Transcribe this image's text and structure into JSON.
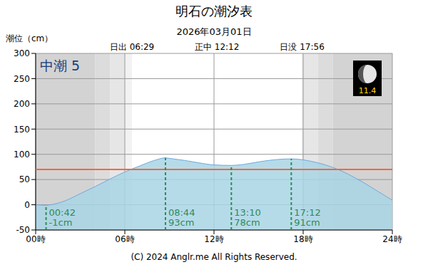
{
  "chart_data": {
    "type": "area",
    "title": "明石の潮汐表",
    "subtitle": "2026年03月01日",
    "y_label": "潮位（cm）",
    "tide_name": "中潮 5",
    "moon_age": 11.4,
    "x": [
      0,
      0.7,
      1,
      2,
      3,
      4,
      5,
      6,
      7,
      8,
      8.73,
      9,
      10,
      11,
      12,
      13.17,
      14,
      15,
      16,
      17.2,
      18,
      19,
      20,
      21,
      22,
      23,
      24
    ],
    "values": [
      0,
      -1,
      0,
      8,
      22,
      36,
      51,
      65,
      77,
      88,
      93,
      92,
      88,
      83,
      79,
      78,
      80,
      85,
      89,
      91,
      89,
      83,
      74,
      61,
      45,
      27,
      9
    ],
    "color": "#a8d5e5",
    "xlim": [
      0,
      24
    ],
    "xticks": [
      {
        "value": 0,
        "label": "00時"
      },
      {
        "value": 6,
        "label": "06時"
      },
      {
        "value": 12,
        "label": "12時"
      },
      {
        "value": 18,
        "label": "18時"
      },
      {
        "value": 24,
        "label": "24時"
      }
    ],
    "ylim": [
      -50,
      300
    ],
    "yticks": [
      -50,
      0,
      50,
      100,
      150,
      200,
      250,
      300
    ],
    "grid": true,
    "sun": [
      {
        "label": "日出",
        "time": "06:29"
      },
      {
        "label": "正中",
        "time": "12:12"
      },
      {
        "label": "日没",
        "time": "17:56"
      }
    ],
    "reference_line": {
      "value": 70,
      "color": "#ff6633"
    },
    "extremes": [
      {
        "time": "00:42",
        "value": -1,
        "label": "-1cm"
      },
      {
        "time": "08:44",
        "value": 93,
        "label": "93cm"
      },
      {
        "time": "13:10",
        "value": 78,
        "label": "78cm"
      },
      {
        "time": "17:12",
        "value": 91,
        "label": "91cm"
      }
    ],
    "night_bands": [
      {
        "from": 0,
        "to": 4,
        "color": "#d3d3d3"
      },
      {
        "from": 4,
        "to": 5,
        "color": "#dcdcdc"
      },
      {
        "from": 5,
        "to": 6,
        "color": "#e6e6e6"
      },
      {
        "from": 6,
        "to": 6.48,
        "color": "#f2f2f2"
      },
      {
        "from": 17.93,
        "to": 19,
        "color": "#e6e6e6"
      },
      {
        "from": 19,
        "to": 20,
        "color": "#dcdcdc"
      },
      {
        "from": 20,
        "to": 24,
        "color": "#d3d3d3"
      }
    ],
    "copyright": "(C) 2024 Anglr.me All Rights Reserved."
  }
}
